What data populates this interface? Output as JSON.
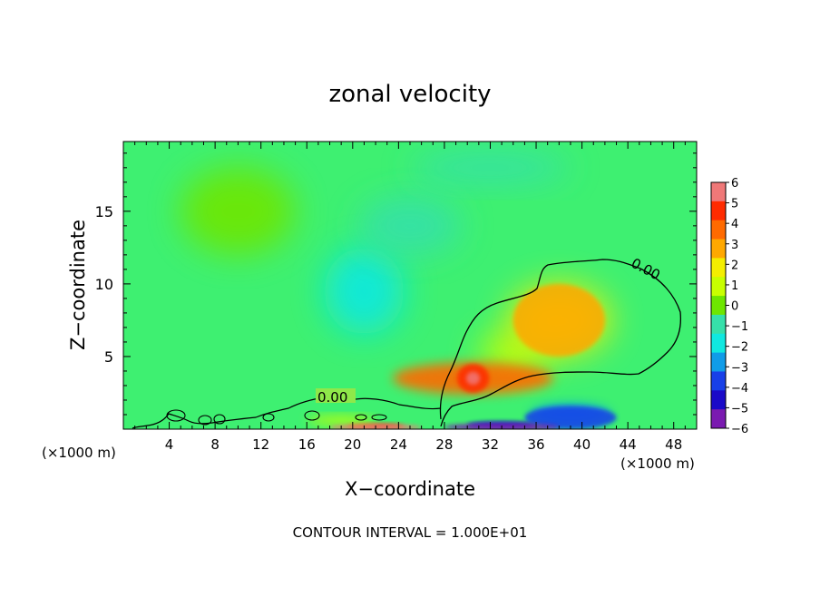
{
  "chart_data": {
    "type": "heatmap",
    "title": "zonal velocity",
    "xlabel": "X−coordinate",
    "ylabel": "Z−coordinate",
    "x_unit_left": "(×1000 m)",
    "x_unit_right": "(×1000 m)",
    "footer": "CONTOUR INTERVAL = 1.000E+01",
    "xlim": [
      0,
      50
    ],
    "ylim": [
      0,
      19.8
    ],
    "x_ticks": [
      4,
      8,
      12,
      16,
      20,
      24,
      28,
      32,
      36,
      40,
      44,
      48
    ],
    "y_ticks": [
      5,
      10,
      15
    ],
    "colorbar": {
      "ticks": [
        6,
        5,
        4,
        3,
        2,
        1,
        0,
        -1,
        -2,
        -3,
        -4,
        -5,
        -6
      ],
      "tick_labels": [
        "6",
        "5",
        "4",
        "3",
        "2",
        "1",
        "0",
        "−1",
        "−2",
        "−3",
        "−4",
        "−5",
        "−6"
      ],
      "colors": [
        "#ef7878",
        "#ff2b00",
        "#ff6a00",
        "#ffa800",
        "#f4ee00",
        "#c8ff00",
        "#6ee600",
        "#36e0aa",
        "#10e8e0",
        "#109ce8",
        "#1840e8",
        "#1a0ac8",
        "#7a1ab0"
      ]
    },
    "background_color": "#3ef071",
    "contour_labels": [
      "0.00",
      "0.00"
    ],
    "features": [
      {
        "x": 30.5,
        "z": 3.5,
        "value": 4.3
      },
      {
        "x": 38,
        "z": 7.5,
        "value": 1.8
      },
      {
        "x": 34,
        "z": 5.2,
        "value": 1.2
      },
      {
        "x": 39,
        "z": 1.0,
        "value": -3.0
      },
      {
        "x": 33,
        "z": 0.3,
        "value": -5.0
      },
      {
        "x": 22,
        "z": 0.2,
        "value": 5.0
      },
      {
        "x": 19,
        "z": 0.6,
        "value": 1.4
      },
      {
        "x": 21,
        "z": 9.5,
        "value": -1.8
      },
      {
        "x": 25,
        "z": 14.0,
        "value": -1.5
      },
      {
        "x": 32,
        "z": 18.0,
        "value": -1.4
      },
      {
        "x": 10,
        "z": 15.0,
        "value": 0.3
      }
    ]
  }
}
